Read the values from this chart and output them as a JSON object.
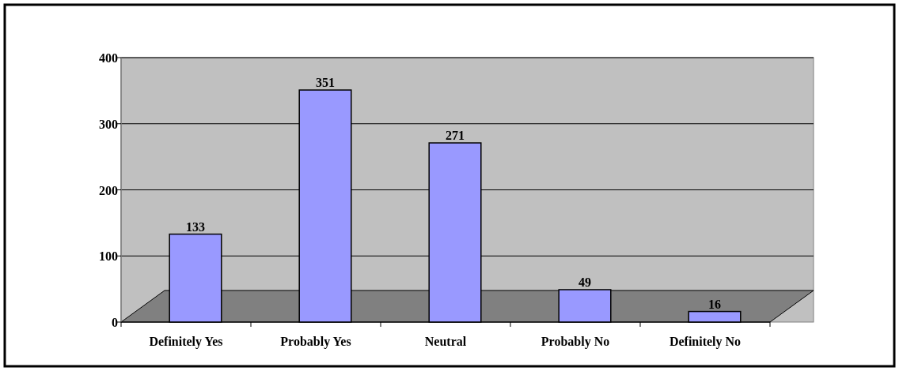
{
  "chart_data": {
    "type": "bar",
    "categories": [
      "Definitely Yes",
      "Probably Yes",
      "Neutral",
      "Probably No",
      "Definitely No"
    ],
    "values": [
      133,
      351,
      271,
      49,
      16
    ],
    "color": "#9999ff",
    "ylim": [
      0,
      400
    ],
    "yticks": [
      0,
      100,
      200,
      300,
      400
    ],
    "grid": "y",
    "data_labels": true
  }
}
